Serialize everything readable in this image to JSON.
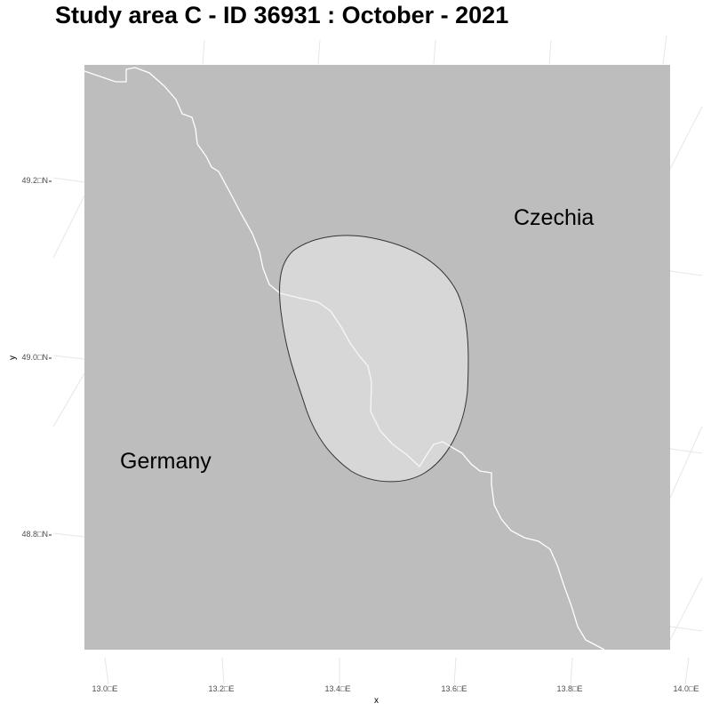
{
  "title": "Study area C - ID 36931 : October - 2021",
  "axes": {
    "xlabel": "x",
    "ylabel": "y",
    "y_ticks": [
      "49.2□N",
      "49.0□N",
      "48.8□N"
    ],
    "x_ticks": [
      "13.0□E",
      "13.2□E",
      "13.4□E",
      "13.6□E",
      "13.8□E",
      "14.0□E"
    ]
  },
  "labels": {
    "czechia": "Czechia",
    "germany": "Germany"
  },
  "colors": {
    "panel": "#bdbdbd",
    "study_area_fill": "#dcdcdc",
    "study_area_stroke": "#333333",
    "border": "#ffffff",
    "graticule": "#e6e6e6"
  }
}
